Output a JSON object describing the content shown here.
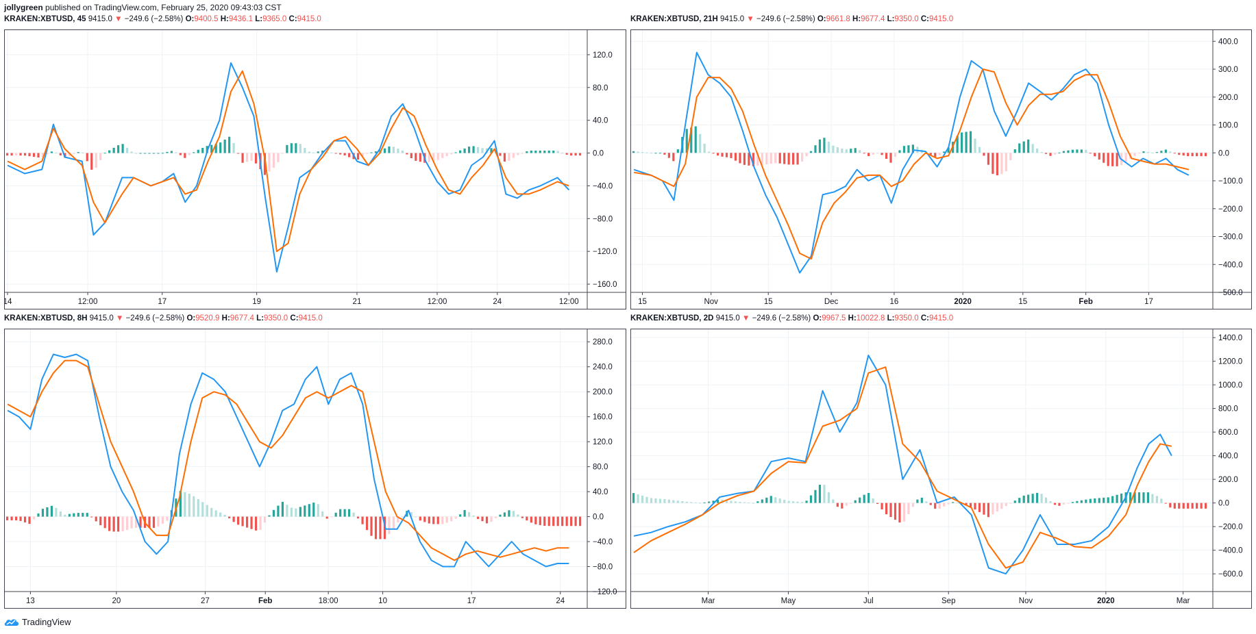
{
  "header": {
    "user": "jollygreen",
    "published_text": "published on TradingView.com, February 25, 2020 09:43:03 CST"
  },
  "footer": {
    "brand": "TradingView",
    "icon": "tradingview-cloud-icon"
  },
  "colors": {
    "macd_line": "#2196f3",
    "signal_line": "#ff6d00",
    "hist_pos_strong": "#26a69a",
    "hist_pos_weak": "#b2dfdb",
    "hist_neg_strong": "#ef5350",
    "hist_neg_weak": "#ffcdd2",
    "ohlc_value": "#ef5350",
    "down_arrow": "#ef5350"
  },
  "panels": [
    {
      "symbol": "KRAKEN:XBTUSD, 45",
      "price": "9415.0",
      "change": "−249.6 (−2.58%)",
      "o_label": "O:",
      "o": "9400.5",
      "h_label": "H:",
      "h": "9436.1",
      "l_label": "L:",
      "l": "9365.0",
      "c_label": "C:",
      "c": "9415.0"
    },
    {
      "symbol": "KRAKEN:XBTUSD, 21H",
      "price": "9415.0",
      "change": "−249.6 (−2.58%)",
      "o_label": "O:",
      "o": "9661.8",
      "h_label": "H:",
      "h": "9677.4",
      "l_label": "L:",
      "l": "9350.0",
      "c_label": "C:",
      "c": "9415.0"
    },
    {
      "symbol": "KRAKEN:XBTUSD, 8H",
      "price": "9415.0",
      "change": "−249.6 (−2.58%)",
      "o_label": "O:",
      "o": "9520.9",
      "h_label": "H:",
      "h": "9677.4",
      "l_label": "L:",
      "l": "9350.0",
      "c_label": "C:",
      "c": "9415.0"
    },
    {
      "symbol": "KRAKEN:XBTUSD, 2D",
      "price": "9415.0",
      "change": "−249.6 (−2.58%)",
      "o_label": "O:",
      "o": "9967.5",
      "h_label": "H:",
      "h": "10022.8",
      "l_label": "L:",
      "l": "9350.0",
      "c_label": "C:",
      "c": "9415.0"
    }
  ],
  "chart_data": [
    {
      "type": "line",
      "ylim": [
        -170,
        150
      ],
      "yticks": [
        120,
        80,
        40,
        0,
        -40,
        -80,
        -120,
        -160
      ],
      "ytick_labels": [
        "120.0",
        "80.0",
        "40.0",
        "0.0",
        "−40.0",
        "−80.0",
        "−120.0",
        "−160.0"
      ],
      "xticks": [
        0,
        0.14,
        0.27,
        0.435,
        0.61,
        0.75,
        0.855,
        0.98
      ],
      "xtick_labels": [
        "14",
        "12:00",
        "17",
        "19",
        "21",
        "12:00",
        "24",
        "12:00"
      ],
      "x": [
        0,
        0.03,
        0.06,
        0.08,
        0.1,
        0.13,
        0.15,
        0.17,
        0.2,
        0.22,
        0.25,
        0.27,
        0.29,
        0.31,
        0.33,
        0.35,
        0.37,
        0.39,
        0.41,
        0.43,
        0.45,
        0.47,
        0.49,
        0.51,
        0.53,
        0.55,
        0.57,
        0.59,
        0.61,
        0.63,
        0.65,
        0.67,
        0.69,
        0.71,
        0.73,
        0.75,
        0.77,
        0.79,
        0.81,
        0.83,
        0.85,
        0.87,
        0.89,
        0.91,
        0.93,
        0.96,
        0.98
      ],
      "series": [
        {
          "values": [
            -15,
            -25,
            -20,
            35,
            -5,
            -10,
            -100,
            -85,
            -30,
            -30,
            -40,
            -35,
            -25,
            -60,
            -40,
            5,
            40,
            110,
            80,
            45,
            -55,
            -145,
            -90,
            -30,
            -20,
            0,
            15,
            15,
            -10,
            -15,
            5,
            45,
            60,
            30,
            -10,
            -35,
            -50,
            -45,
            -15,
            -5,
            15,
            -50,
            -55,
            -45,
            -40,
            -30,
            -45
          ]
        },
        {
          "values": [
            -10,
            -20,
            -10,
            30,
            5,
            -15,
            -60,
            -85,
            -50,
            -30,
            -40,
            -35,
            -30,
            -50,
            -45,
            -10,
            20,
            75,
            100,
            60,
            -10,
            -120,
            -110,
            -50,
            -20,
            -5,
            15,
            20,
            5,
            -15,
            0,
            30,
            55,
            45,
            10,
            -20,
            -45,
            -50,
            -30,
            -15,
            5,
            -30,
            -50,
            -50,
            -45,
            -35,
            -40
          ]
        }
      ]
    },
    {
      "type": "line",
      "ylim": [
        -500,
        440
      ],
      "yticks": [
        400,
        300,
        200,
        100,
        0,
        -100,
        -200,
        -300,
        -400,
        -500
      ],
      "ytick_labels": [
        "400.0",
        "300.0",
        "200.0",
        "100.0",
        "0.0",
        "−100.0",
        "−200.0",
        "−300.0",
        "−400.0",
        "−500.0"
      ],
      "xticks": [
        0.015,
        0.135,
        0.235,
        0.345,
        0.455,
        0.575,
        0.68,
        0.79,
        0.9
      ],
      "xtick_labels": [
        "15",
        "Nov",
        "15",
        "Dec",
        "16",
        "2020",
        "15",
        "Feb",
        "17"
      ],
      "x": [
        0,
        0.03,
        0.05,
        0.07,
        0.09,
        0.11,
        0.13,
        0.15,
        0.17,
        0.19,
        0.21,
        0.23,
        0.25,
        0.27,
        0.29,
        0.31,
        0.33,
        0.35,
        0.37,
        0.39,
        0.41,
        0.43,
        0.45,
        0.47,
        0.49,
        0.51,
        0.53,
        0.55,
        0.57,
        0.59,
        0.61,
        0.63,
        0.65,
        0.67,
        0.69,
        0.71,
        0.73,
        0.75,
        0.77,
        0.79,
        0.81,
        0.83,
        0.85,
        0.87,
        0.89,
        0.91,
        0.93,
        0.95,
        0.97
      ],
      "series": [
        {
          "values": [
            -60,
            -80,
            -100,
            -170,
            100,
            360,
            280,
            250,
            200,
            80,
            -50,
            -150,
            -230,
            -330,
            -430,
            -370,
            -150,
            -140,
            -120,
            -60,
            -100,
            -80,
            -180,
            -60,
            10,
            5,
            -50,
            20,
            200,
            330,
            300,
            150,
            60,
            150,
            250,
            220,
            190,
            230,
            280,
            300,
            250,
            100,
            -20,
            -50,
            -20,
            -40,
            -20,
            -60,
            -80
          ]
        },
        {
          "values": [
            -70,
            -80,
            -100,
            -120,
            -40,
            200,
            270,
            270,
            230,
            150,
            30,
            -80,
            -170,
            -260,
            -360,
            -380,
            -250,
            -180,
            -140,
            -90,
            -80,
            -80,
            -120,
            -100,
            -40,
            0,
            -20,
            -10,
            80,
            200,
            300,
            290,
            180,
            100,
            170,
            210,
            210,
            220,
            260,
            280,
            280,
            180,
            60,
            -20,
            -30,
            -40,
            -40,
            -50,
            -60
          ]
        }
      ]
    },
    {
      "type": "line",
      "ylim": [
        -120,
        300
      ],
      "yticks": [
        280,
        240,
        200,
        160,
        120,
        80,
        40,
        0,
        -40,
        -80,
        -120
      ],
      "ytick_labels": [
        "280.0",
        "240.0",
        "200.0",
        "160.0",
        "120.0",
        "80.0",
        "40.0",
        "0.0",
        "−40.0",
        "−80.0",
        "−120.0"
      ],
      "xticks": [
        0.04,
        0.19,
        0.345,
        0.45,
        0.56,
        0.655,
        0.81,
        0.965
      ],
      "xtick_labels": [
        "13",
        "20",
        "27",
        "Feb",
        "18:00",
        "10",
        "17",
        "24"
      ],
      "x": [
        0,
        0.02,
        0.04,
        0.06,
        0.08,
        0.1,
        0.12,
        0.14,
        0.16,
        0.18,
        0.2,
        0.22,
        0.24,
        0.26,
        0.28,
        0.3,
        0.32,
        0.34,
        0.36,
        0.38,
        0.4,
        0.42,
        0.44,
        0.46,
        0.48,
        0.5,
        0.52,
        0.54,
        0.56,
        0.58,
        0.6,
        0.62,
        0.64,
        0.66,
        0.68,
        0.7,
        0.72,
        0.74,
        0.76,
        0.78,
        0.8,
        0.82,
        0.84,
        0.86,
        0.88,
        0.9,
        0.92,
        0.94,
        0.96,
        0.98
      ],
      "series": [
        {
          "values": [
            170,
            160,
            140,
            220,
            260,
            255,
            260,
            250,
            160,
            80,
            40,
            10,
            -40,
            -60,
            -40,
            100,
            180,
            230,
            220,
            200,
            160,
            120,
            80,
            120,
            170,
            180,
            220,
            240,
            180,
            220,
            230,
            180,
            60,
            -20,
            -20,
            10,
            -40,
            -70,
            -80,
            -80,
            -40,
            -60,
            -80,
            -60,
            -40,
            -60,
            -70,
            -80,
            -75,
            -75
          ]
        },
        {
          "values": [
            180,
            170,
            160,
            200,
            230,
            250,
            250,
            240,
            180,
            120,
            80,
            40,
            -10,
            -30,
            -30,
            30,
            120,
            190,
            200,
            195,
            180,
            150,
            120,
            110,
            130,
            160,
            190,
            200,
            190,
            200,
            210,
            200,
            120,
            40,
            0,
            -10,
            -30,
            -50,
            -60,
            -70,
            -60,
            -55,
            -60,
            -65,
            -60,
            -55,
            -50,
            -55,
            -50,
            -50
          ]
        }
      ]
    },
    {
      "type": "line",
      "ylim": [
        -750,
        1470
      ],
      "yticks": [
        1400,
        1200,
        1000,
        800,
        600,
        400,
        200,
        0,
        -200,
        -400,
        -600
      ],
      "ytick_labels": [
        "1400.0",
        "1200.0",
        "1000.0",
        "800.0",
        "600.0",
        "400.0",
        "200.0",
        "0.0",
        "−200.0",
        "−400.0",
        "−600.0"
      ],
      "xticks": [
        0.13,
        0.27,
        0.41,
        0.55,
        0.685,
        0.825,
        0.96
      ],
      "xtick_labels": [
        "Mar",
        "May",
        "Jul",
        "Sep",
        "Nov",
        "2020",
        "Mar"
      ],
      "x": [
        0,
        0.03,
        0.06,
        0.09,
        0.12,
        0.15,
        0.18,
        0.21,
        0.24,
        0.27,
        0.3,
        0.33,
        0.36,
        0.39,
        0.41,
        0.44,
        0.47,
        0.5,
        0.53,
        0.56,
        0.59,
        0.62,
        0.65,
        0.68,
        0.71,
        0.74,
        0.77,
        0.8,
        0.83,
        0.86,
        0.88,
        0.9,
        0.92,
        0.94
      ],
      "series": [
        {
          "values": [
            -280,
            -250,
            -200,
            -160,
            -100,
            50,
            80,
            100,
            350,
            380,
            350,
            950,
            600,
            850,
            1250,
            1000,
            200,
            450,
            0,
            50,
            -100,
            -550,
            -600,
            -400,
            -100,
            -350,
            -350,
            -320,
            -200,
            50,
            300,
            500,
            580,
            400
          ]
        },
        {
          "values": [
            -420,
            -320,
            -250,
            -180,
            -100,
            0,
            60,
            100,
            250,
            350,
            340,
            650,
            700,
            800,
            1100,
            1150,
            500,
            350,
            100,
            30,
            -40,
            -350,
            -550,
            -500,
            -250,
            -300,
            -370,
            -380,
            -280,
            -100,
            150,
            350,
            500,
            480
          ]
        }
      ]
    }
  ]
}
